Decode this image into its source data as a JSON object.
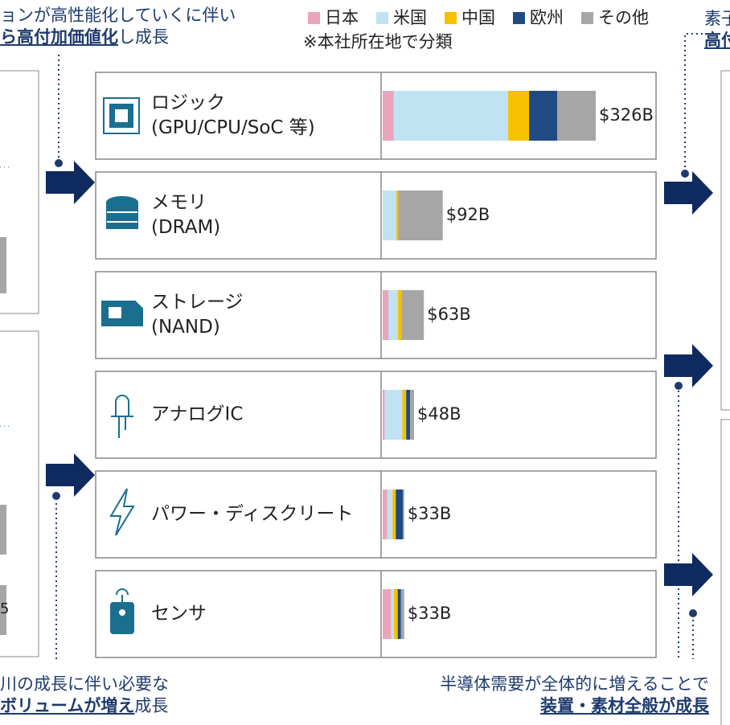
{
  "chart_data": {
    "type": "stacked-bar-horizontal",
    "categories": [
      [
        "ロジック",
        "(GPU/CPU/SoC 等)"
      ],
      [
        "メモリ",
        "(DRAM)"
      ],
      [
        "ストレージ",
        "(NAND)"
      ],
      [
        "アナログIC"
      ],
      [
        "パワー・ディスクリート"
      ],
      [
        "センサ"
      ]
    ],
    "series": [
      {
        "name": "日本",
        "color": "#e8a5bc",
        "values": [
          17,
          0,
          9,
          3,
          7,
          13
        ]
      },
      {
        "name": "米国",
        "color": "#bfe3f3",
        "values": [
          175,
          21,
          14,
          27,
          8,
          4
        ]
      },
      {
        "name": "中国",
        "color": "#f7c000",
        "values": [
          32,
          3,
          6,
          6,
          5,
          6
        ]
      },
      {
        "name": "欧州",
        "color": "#1f4b82",
        "values": [
          43,
          0,
          0,
          6,
          11,
          5
        ]
      },
      {
        "name": "その他",
        "color": "#a6a6a6",
        "values": [
          59,
          68,
          34,
          6,
          2,
          5
        ]
      }
    ],
    "totals": {
      "values": [
        326,
        92,
        63,
        48,
        33,
        33
      ],
      "value_labels": [
        "$326B",
        "$92B",
        "$63B",
        "$48B",
        "$33B",
        "$33B"
      ]
    },
    "legend_note": "※本社所在地で分類",
    "legend_position": "top"
  },
  "annotations": {
    "top_left": [
      "ョンが高性能化していくに伴い",
      "ら高付加価値化",
      "し成長"
    ],
    "top_right": [
      "素子",
      "高付"
    ],
    "bottom_left": [
      "川の成長に伴い必要な",
      "ボリュームが増え",
      "成長"
    ],
    "bottom_right": [
      "半導体需要が全体的に増えることで",
      "装置・素材全般が成長"
    ],
    "left_box_label": "5"
  }
}
